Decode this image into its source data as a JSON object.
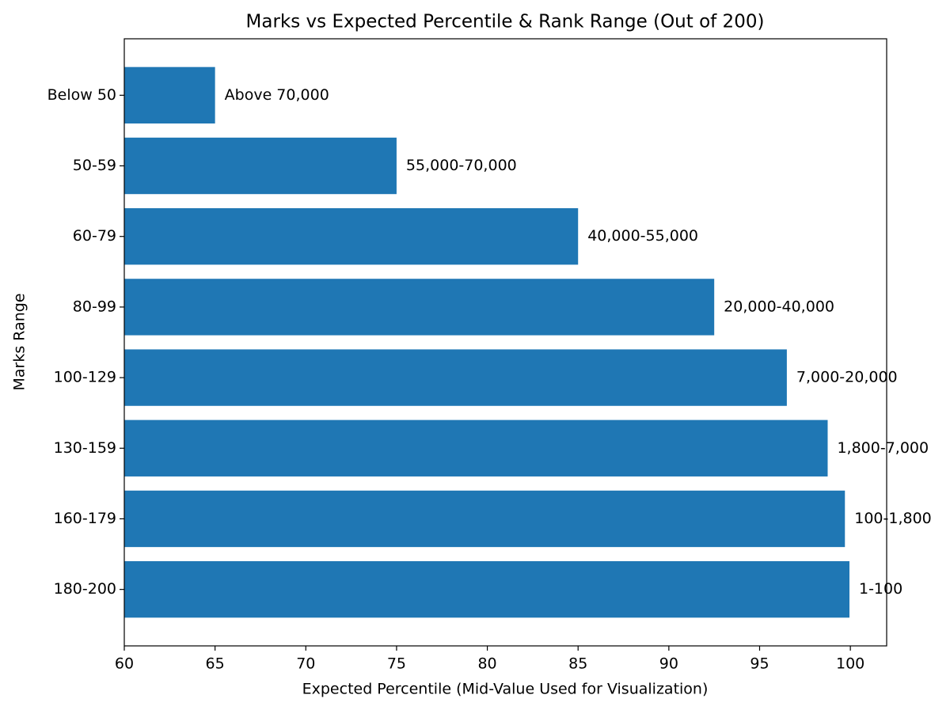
{
  "chart_data": {
    "type": "barh",
    "title": "Marks vs Expected Percentile & Rank Range (Out of 200)",
    "x_label": "Expected Percentile (Mid-Value Used for Visualization)",
    "y_label": "Marks Range",
    "categories": [
      "Below 50",
      "50-59",
      "60-79",
      "80-99",
      "100-129",
      "130-159",
      "160-179",
      "180-200"
    ],
    "values": [
      65,
      75,
      85,
      92.5,
      96.5,
      98.75,
      99.7,
      99.95
    ],
    "annotations": [
      "Above 70,000",
      "55,000-70,000",
      "40,000-55,000",
      "20,000-40,000",
      "7,000-20,000",
      "1,800-7,000",
      "100-1,800",
      "1-100"
    ],
    "color": "#1f77b4",
    "xlim": [
      60,
      102
    ],
    "xticks": [
      60,
      65,
      70,
      75,
      80,
      85,
      90,
      95,
      100
    ],
    "grid": false
  }
}
